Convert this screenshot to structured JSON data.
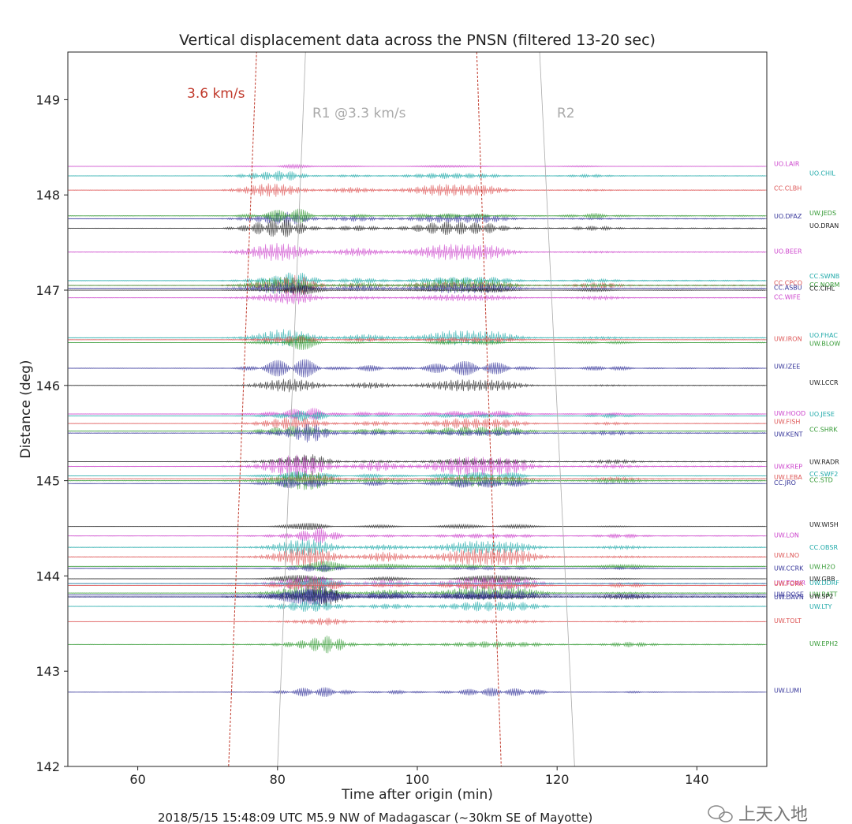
{
  "chart_data": {
    "type": "line",
    "title": "Vertical displacement data across the PNSN (filtered 13-20 sec)",
    "xlabel": "Time after origin (min)",
    "ylabel": "Distance (deg)",
    "xlim": [
      50,
      150
    ],
    "ylim": [
      142,
      149.5
    ],
    "x_ticks": [
      "60",
      "80",
      "100",
      "120",
      "140"
    ],
    "y_ticks": [
      "142",
      "143",
      "144",
      "145",
      "146",
      "147",
      "148",
      "149"
    ],
    "grid": false,
    "velocity_lines": [
      {
        "label": "3.6 km/s",
        "color": "#c0392b",
        "style": "dashed",
        "segments": [
          [
            [
              73,
              142
            ],
            [
              77,
              149.5
            ]
          ],
          [
            [
              108.5,
              149.5
            ],
            [
              112,
              142
            ]
          ]
        ]
      },
      {
        "label": "R1 @3.3 km/s",
        "color": "#aaaaaa",
        "style": "solid",
        "segments": [
          [
            [
              80,
              142
            ],
            [
              84,
              149.5
            ]
          ]
        ]
      },
      {
        "label": "R2",
        "color": "#aaaaaa",
        "style": "solid",
        "segments": [
          [
            [
              117.5,
              149.5
            ],
            [
              122.5,
              142
            ]
          ]
        ]
      }
    ],
    "stations": [
      {
        "name": "UO.LAIR",
        "dist": 148.3,
        "color": "#cc44cc",
        "column": 0,
        "label_y": 148.33
      },
      {
        "name": "UO.CHIL",
        "dist": 148.2,
        "color": "#22aaaa",
        "column": 1,
        "label_y": 148.23
      },
      {
        "name": "CC.CLBH",
        "dist": 148.05,
        "color": "#dd5555",
        "column": 0,
        "label_y": 148.07
      },
      {
        "name": "UO.DFAZ",
        "dist": 147.75,
        "color": "#333399",
        "column": 0,
        "label_y": 147.78
      },
      {
        "name": "UW.JEDS",
        "dist": 147.78,
        "color": "#339933",
        "column": 1,
        "label_y": 147.81
      },
      {
        "name": "UO.DRAN",
        "dist": 147.65,
        "color": "#222222",
        "column": 1,
        "label_y": 147.68
      },
      {
        "name": "UO.BEER",
        "dist": 147.4,
        "color": "#cc44cc",
        "column": 0,
        "label_y": 147.41
      },
      {
        "name": "CC.SWNB",
        "dist": 147.1,
        "color": "#22aaaa",
        "column": 1,
        "label_y": 147.15
      },
      {
        "name": "CC.CPCO",
        "dist": 147.05,
        "color": "#dd5555",
        "column": 0,
        "label_y": 147.08
      },
      {
        "name": "CC.NORM",
        "dist": 147.05,
        "color": "#339933",
        "column": 1,
        "label_y": 147.06
      },
      {
        "name": "CC.ASBU",
        "dist": 147.02,
        "color": "#333399",
        "column": 0,
        "label_y": 147.03
      },
      {
        "name": "CC.CIHL",
        "dist": 147.0,
        "color": "#222222",
        "column": 1,
        "label_y": 147.02
      },
      {
        "name": "CC.WIFE",
        "dist": 146.92,
        "color": "#cc44cc",
        "column": 0,
        "label_y": 146.93
      },
      {
        "name": "UO.FHAC",
        "dist": 146.5,
        "color": "#22aaaa",
        "column": 1,
        "label_y": 146.53
      },
      {
        "name": "UW.IRON",
        "dist": 146.48,
        "color": "#dd5555",
        "column": 0,
        "label_y": 146.49
      },
      {
        "name": "UW.BLOW",
        "dist": 146.45,
        "color": "#339933",
        "column": 1,
        "label_y": 146.44
      },
      {
        "name": "UW.IZEE",
        "dist": 146.18,
        "color": "#333399",
        "column": 0,
        "label_y": 146.2
      },
      {
        "name": "UW.LCCR",
        "dist": 146.0,
        "color": "#222222",
        "column": 1,
        "label_y": 146.03
      },
      {
        "name": "UW.HOOD",
        "dist": 145.7,
        "color": "#cc44cc",
        "column": 0,
        "label_y": 145.71
      },
      {
        "name": "UO.JESE",
        "dist": 145.68,
        "color": "#22aaaa",
        "column": 1,
        "label_y": 145.7
      },
      {
        "name": "UW.FISH",
        "dist": 145.6,
        "color": "#dd5555",
        "column": 0,
        "label_y": 145.62
      },
      {
        "name": "CC.SHRK",
        "dist": 145.52,
        "color": "#339933",
        "column": 1,
        "label_y": 145.54
      },
      {
        "name": "UW.KENT",
        "dist": 145.5,
        "color": "#333399",
        "column": 0,
        "label_y": 145.49
      },
      {
        "name": "UW.RADR",
        "dist": 145.2,
        "color": "#222222",
        "column": 1,
        "label_y": 145.2
      },
      {
        "name": "UW.KREP",
        "dist": 145.15,
        "color": "#cc44cc",
        "column": 0,
        "label_y": 145.15
      },
      {
        "name": "CC.SWF2",
        "dist": 145.05,
        "color": "#22aaaa",
        "column": 1,
        "label_y": 145.07
      },
      {
        "name": "UW.LEBA",
        "dist": 145.02,
        "color": "#dd5555",
        "column": 0,
        "label_y": 145.04
      },
      {
        "name": "CC.STD",
        "dist": 145.0,
        "color": "#339933",
        "column": 1,
        "label_y": 145.01
      },
      {
        "name": "CC.JRO",
        "dist": 144.97,
        "color": "#333399",
        "column": 0,
        "label_y": 144.98
      },
      {
        "name": "UW.WISH",
        "dist": 144.52,
        "color": "#222222",
        "column": 1,
        "label_y": 144.54
      },
      {
        "name": "UW.LON",
        "dist": 144.42,
        "color": "#cc44cc",
        "column": 0,
        "label_y": 144.43
      },
      {
        "name": "CC.OBSR",
        "dist": 144.3,
        "color": "#22aaaa",
        "column": 1,
        "label_y": 144.3
      },
      {
        "name": "UW.LNO",
        "dist": 144.2,
        "color": "#dd5555",
        "column": 0,
        "label_y": 144.22
      },
      {
        "name": "UW.H2O",
        "dist": 144.1,
        "color": "#339933",
        "column": 1,
        "label_y": 144.1
      },
      {
        "name": "UW.CCRK",
        "dist": 144.08,
        "color": "#333399",
        "column": 0,
        "label_y": 144.08
      },
      {
        "name": "UW.GBB",
        "dist": 143.97,
        "color": "#222222",
        "column": 1,
        "label_y": 143.97
      },
      {
        "name": "UW.TOWR",
        "dist": 143.92,
        "color": "#cc44cc",
        "column": 0,
        "label_y": 143.93
      },
      {
        "name": "UW.DDRF",
        "dist": 143.92,
        "color": "#22aaaa",
        "column": 1,
        "label_y": 143.93
      },
      {
        "name": "UW.FORK",
        "dist": 143.9,
        "color": "#dd5555",
        "column": 0,
        "label_y": 143.92
      },
      {
        "name": "UW.BATT",
        "dist": 143.82,
        "color": "#339933",
        "column": 1,
        "label_y": 143.81
      },
      {
        "name": "UW.DOSE",
        "dist": 143.8,
        "color": "#333399",
        "column": 0,
        "label_y": 143.81
      },
      {
        "name": "UW.SP2",
        "dist": 143.78,
        "color": "#222222",
        "column": 1,
        "label_y": 143.79
      },
      {
        "name": "UW.DAVN",
        "dist": 143.78,
        "color": "#333399",
        "column": 0,
        "label_y": 143.78
      },
      {
        "name": "UW.LTY",
        "dist": 143.68,
        "color": "#22aaaa",
        "column": 1,
        "label_y": 143.68
      },
      {
        "name": "UW.TOLT",
        "dist": 143.52,
        "color": "#dd5555",
        "column": 0,
        "label_y": 143.53
      },
      {
        "name": "UW.EPH2",
        "dist": 143.28,
        "color": "#339933",
        "column": 1,
        "label_y": 143.29
      },
      {
        "name": "UW.LUMI",
        "dist": 142.78,
        "color": "#333399",
        "column": 0,
        "label_y": 142.8
      }
    ]
  },
  "caption": "2018/5/15 15:48:09 UTC  M5.9 NW of Madagascar (~30km SE of Mayotte)",
  "watermark": "上天入地"
}
